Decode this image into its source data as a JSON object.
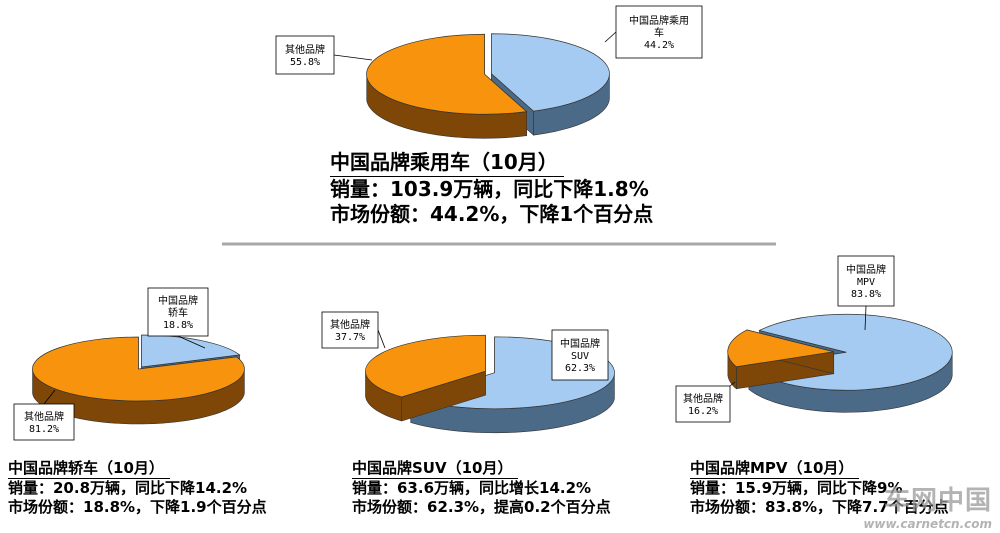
{
  "colors": {
    "china_top": "#a6cbf2",
    "china_side": "#4a6a88",
    "other_top": "#f7930c",
    "other_side": "#7e4607",
    "divider": "#a8a8a8"
  },
  "chart_data": [
    {
      "type": "pie",
      "slices": [
        {
          "label": "中国品牌乘用车",
          "value": 44.2
        },
        {
          "label": "其他品牌",
          "value": 55.8
        }
      ],
      "caption": [
        "中国品牌乘用车（10月）",
        "销量：103.9万辆，同比下降1.8%",
        "市场份额：44.2%，下降1个百分点"
      ]
    },
    {
      "type": "pie",
      "slices": [
        {
          "label": "中国品牌轿车",
          "value": 18.8
        },
        {
          "label": "其他品牌",
          "value": 81.2
        }
      ],
      "caption": [
        "中国品牌轿车（10月）",
        "销量：20.8万辆，同比下降14.2%",
        "市场份额：18.8%，下降1.9个百分点"
      ]
    },
    {
      "type": "pie",
      "slices": [
        {
          "label": "中国品牌SUV",
          "value": 62.3
        },
        {
          "label": "其他品牌",
          "value": 37.7
        }
      ],
      "caption": [
        "中国品牌SUV（10月）",
        "销量：63.6万辆，同比增长14.2%",
        "市场份额：62.3%，提高0.2个百分点"
      ]
    },
    {
      "type": "pie",
      "slices": [
        {
          "label": "中国品牌MPV",
          "value": 83.8
        },
        {
          "label": "其他品牌",
          "value": 16.2
        }
      ],
      "caption": [
        "中国品牌MPV（10月）",
        "销量：15.9万辆，同比下降9%",
        "市场份额：83.8%，下降7.7个百分点"
      ]
    }
  ],
  "labels": [
    {
      "lines": [
        "中国品牌乘用",
        "车",
        "44.2%"
      ]
    },
    {
      "lines": [
        "其他品牌",
        "55.8%"
      ]
    },
    {
      "lines": [
        "中国品牌",
        "轿车",
        "18.8%"
      ]
    },
    {
      "lines": [
        "其他品牌",
        "81.2%"
      ]
    },
    {
      "lines": [
        "中国品牌",
        "SUV",
        "62.3%"
      ]
    },
    {
      "lines": [
        "其他品牌",
        "37.7%"
      ]
    },
    {
      "lines": [
        "中国品牌",
        "MPV",
        "83.8%"
      ]
    },
    {
      "lines": [
        "其他品牌",
        "16.2%"
      ]
    }
  ],
  "watermark": {
    "main": "车网中国",
    "sub": "www.carnetcn.com"
  }
}
